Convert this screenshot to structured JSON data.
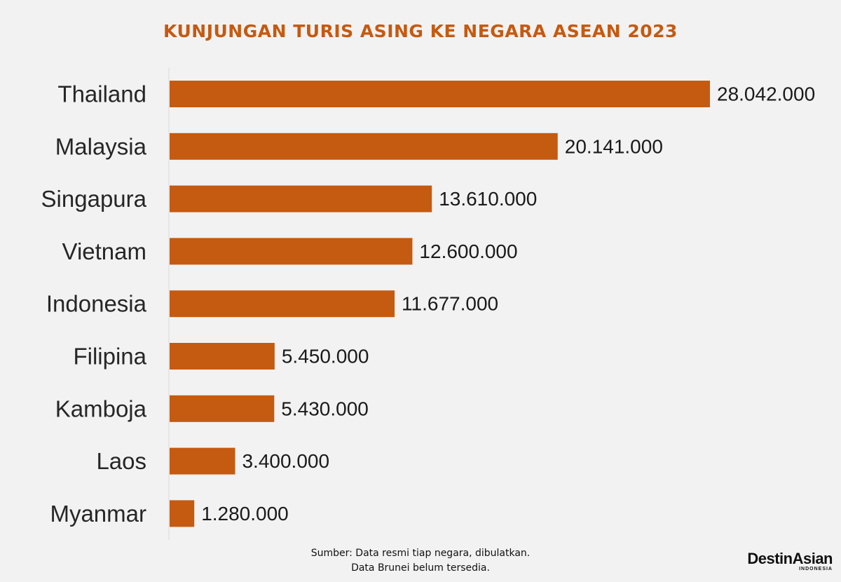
{
  "chart_data": {
    "type": "bar",
    "orientation": "horizontal",
    "title": "KUNJUNGAN TURIS ASING KE NEGARA ASEAN 2023",
    "categories": [
      "Thailand",
      "Malaysia",
      "Singapura",
      "Vietnam",
      "Indonesia",
      "Filipina",
      "Kamboja",
      "Laos",
      "Myanmar"
    ],
    "values": [
      28042000,
      20141000,
      13610000,
      12600000,
      11677000,
      5450000,
      5430000,
      3400000,
      1280000
    ],
    "value_labels": [
      "28.042.000",
      "20.141.000",
      "13.610.000",
      "12.600.000",
      "11.677.000",
      "5.450.000",
      "5.430.000",
      "3.400.000",
      "1.280.000"
    ],
    "bar_color": "#c55a11",
    "grid": false,
    "legend": "none"
  },
  "source": {
    "line1": "Sumber: Data resmi tiap negara, dibulatkan.",
    "line2": "Data Brunei belum tersedia."
  },
  "logo": {
    "main": "DestinAsian",
    "sub": "INDONESIA"
  }
}
